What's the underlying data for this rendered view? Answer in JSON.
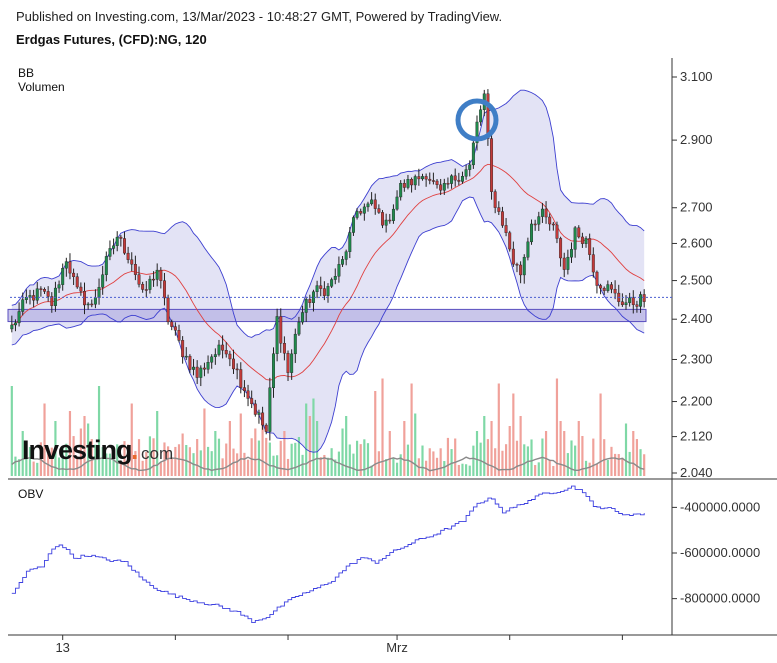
{
  "header": {
    "published": "Published on Investing.com, 13/Mar/2023 - 10:48:27 GMT, Powered by TradingView.",
    "symbol": "Erdgas Futures, (CFD):NG, 120"
  },
  "panels": {
    "main_labels": [
      "BB",
      "Volumen"
    ],
    "lower_label": "OBV"
  },
  "logo": {
    "main": "Investing",
    "dot": ".",
    "suffix": "com"
  },
  "colors": {
    "up": "#1f8a4c",
    "down": "#c23a3a",
    "wick": "#222222",
    "bb_band": "#3d3fd0",
    "bb_fill": "#d9daf2",
    "bb_mid": "#e04040",
    "vol_up": "#7fd8a6",
    "vol_down": "#f0a19a",
    "vol_ma": "#8a8a8a",
    "obv": "#3b3fe0",
    "zone_fill": "#b7b3e3",
    "zone_edge": "#5a4fc0",
    "circle": "#3f7ec6",
    "price_line": "#4a5ed0"
  },
  "chart_data": {
    "type": "candlestick",
    "price_axis": {
      "ticks": [
        {
          "value": 3.1,
          "label": "3.100"
        },
        {
          "value": 2.9,
          "label": "2.900"
        },
        {
          "value": 2.7,
          "label": "2.700"
        },
        {
          "value": 2.6,
          "label": "2.600"
        },
        {
          "value": 2.5,
          "label": "2.500"
        },
        {
          "value": 2.4,
          "label": "2.400"
        },
        {
          "value": 2.3,
          "label": "2.300"
        },
        {
          "value": 2.2,
          "label": "2.200"
        },
        {
          "value": 2.12,
          "label": "2.120"
        },
        {
          "value": 2.04,
          "label": "2.040"
        }
      ],
      "range": [
        2.03,
        3.14
      ],
      "scale": "log"
    },
    "x_axis": {
      "range": [
        0,
        175
      ],
      "labels": [
        {
          "bar": 14,
          "label": "13"
        },
        {
          "bar": 106,
          "label": "Mrz"
        }
      ],
      "tick_bars": [
        14,
        45,
        76,
        106,
        137,
        168
      ]
    },
    "obv_axis": {
      "ticks": [
        {
          "value": -400000,
          "label": "-400000.0000"
        },
        {
          "value": -600000,
          "label": "-600000.0000"
        },
        {
          "value": -800000,
          "label": "-800000.0000"
        }
      ],
      "range": [
        -955000,
        -280000
      ]
    },
    "key_closes": [
      [
        0,
        2.38
      ],
      [
        4,
        2.45
      ],
      [
        8,
        2.47
      ],
      [
        11,
        2.44
      ],
      [
        15,
        2.56
      ],
      [
        18,
        2.47
      ],
      [
        22,
        2.43
      ],
      [
        26,
        2.55
      ],
      [
        29,
        2.62
      ],
      [
        33,
        2.55
      ],
      [
        36,
        2.46
      ],
      [
        40,
        2.53
      ],
      [
        43,
        2.4
      ],
      [
        47,
        2.32
      ],
      [
        51,
        2.26
      ],
      [
        55,
        2.31
      ],
      [
        59,
        2.33
      ],
      [
        63,
        2.25
      ],
      [
        67,
        2.18
      ],
      [
        70,
        2.13
      ],
      [
        73,
        2.4
      ],
      [
        76,
        2.27
      ],
      [
        79,
        2.4
      ],
      [
        83,
        2.47
      ],
      [
        87,
        2.48
      ],
      [
        91,
        2.55
      ],
      [
        95,
        2.69
      ],
      [
        99,
        2.71
      ],
      [
        103,
        2.65
      ],
      [
        107,
        2.76
      ],
      [
        111,
        2.78
      ],
      [
        114,
        2.8
      ],
      [
        118,
        2.74
      ],
      [
        121,
        2.78
      ],
      [
        124,
        2.8
      ],
      [
        126,
        2.82
      ],
      [
        128,
        2.95
      ],
      [
        130,
        3.04
      ],
      [
        132,
        2.74
      ],
      [
        135,
        2.66
      ],
      [
        138,
        2.55
      ],
      [
        140,
        2.52
      ],
      [
        143,
        2.66
      ],
      [
        146,
        2.68
      ],
      [
        149,
        2.64
      ],
      [
        152,
        2.53
      ],
      [
        155,
        2.63
      ],
      [
        158,
        2.61
      ],
      [
        161,
        2.5
      ],
      [
        164,
        2.48
      ],
      [
        167,
        2.45
      ],
      [
        170,
        2.44
      ],
      [
        173,
        2.45
      ]
    ],
    "bollinger_std_mult": 2,
    "bollinger_period": 20,
    "support_zone": [
      2.394,
      2.425
    ],
    "last_price": 2.456,
    "highlight_bar": 128,
    "volume": {
      "bar_maxima": [
        3.6,
        2.1,
        1.5,
        1.8,
        3.4,
        2.7,
        3.9,
        2.2,
        1.8,
        2.9,
        2.4,
        3.1,
        2.2,
        1.6,
        3.7,
        2.5,
        2.6,
        2.0,
        3.3,
        1.9,
        2.4,
        2.1,
        1.6,
        1.7
      ],
      "ma_level": 0.45
    },
    "obv_key_values": [
      [
        0,
        -780000
      ],
      [
        4,
        -680000
      ],
      [
        8,
        -660000
      ],
      [
        11,
        -580000
      ],
      [
        13,
        -560000
      ],
      [
        17,
        -620000
      ],
      [
        21,
        -610000
      ],
      [
        26,
        -630000
      ],
      [
        31,
        -640000
      ],
      [
        36,
        -720000
      ],
      [
        40,
        -760000
      ],
      [
        45,
        -790000
      ],
      [
        50,
        -810000
      ],
      [
        56,
        -830000
      ],
      [
        62,
        -860000
      ],
      [
        66,
        -900000
      ],
      [
        70,
        -880000
      ],
      [
        74,
        -830000
      ],
      [
        78,
        -790000
      ],
      [
        83,
        -760000
      ],
      [
        88,
        -720000
      ],
      [
        92,
        -660000
      ],
      [
        96,
        -620000
      ],
      [
        100,
        -640000
      ],
      [
        104,
        -600000
      ],
      [
        108,
        -570000
      ],
      [
        112,
        -540000
      ],
      [
        116,
        -520000
      ],
      [
        120,
        -490000
      ],
      [
        124,
        -460000
      ],
      [
        128,
        -380000
      ],
      [
        132,
        -360000
      ],
      [
        135,
        -420000
      ],
      [
        138,
        -400000
      ],
      [
        142,
        -370000
      ],
      [
        146,
        -340000
      ],
      [
        150,
        -330000
      ],
      [
        154,
        -310000
      ],
      [
        157,
        -330000
      ],
      [
        160,
        -400000
      ],
      [
        164,
        -400000
      ],
      [
        167,
        -430000
      ],
      [
        170,
        -430000
      ],
      [
        173,
        -430000
      ]
    ]
  }
}
